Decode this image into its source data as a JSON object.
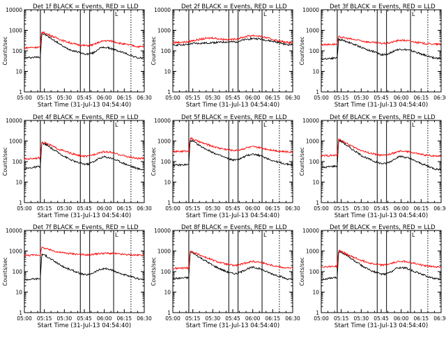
{
  "figure": {
    "colors": {
      "events": "#000000",
      "lld": "#ff0000",
      "axes": "#000000",
      "background": "#ffffff"
    }
  },
  "chart_data": [
    {
      "type": "line",
      "title": "Det 1f BLACK = Events, RED = LLD",
      "xlabel": "Start Time (31-Jul-13 04:54:40)",
      "ylabel": "Counts/sec",
      "yscale": "log",
      "ylim": [
        1,
        10000
      ],
      "xlim": [
        "05:00",
        "06:30"
      ],
      "x_ticks": [
        "05:00",
        "05:15",
        "05:30",
        "05:45",
        "06:00",
        "06:15",
        "06:30"
      ],
      "y_ticks": [
        "1",
        "10",
        "100",
        "1000",
        "10000"
      ],
      "solid_markers": [
        "05:12",
        "05:42",
        "05:49",
        "06:07"
      ],
      "dotted_markers": [
        "05:12",
        "06:20"
      ],
      "markers_label": "L",
      "x": [
        "05:00",
        "05:10",
        "05:12",
        "05:13",
        "05:16",
        "05:20",
        "05:25",
        "05:30",
        "05:35",
        "05:40",
        "05:45",
        "05:48",
        "05:52",
        "05:56",
        "06:00",
        "06:05",
        "06:10",
        "06:15",
        "06:20",
        "06:25",
        "06:30"
      ],
      "series": [
        {
          "name": "Events",
          "color": "#000000",
          "values": [
            45,
            50,
            50,
            700,
            600,
            400,
            250,
            150,
            110,
            90,
            70,
            70,
            80,
            130,
            150,
            130,
            100,
            80,
            60,
            45,
            45
          ]
        },
        {
          "name": "LLD",
          "color": "#ff0000",
          "values": [
            140,
            150,
            150,
            850,
            700,
            550,
            400,
            300,
            240,
            200,
            180,
            180,
            200,
            260,
            310,
            300,
            250,
            210,
            190,
            160,
            160
          ]
        }
      ]
    },
    {
      "type": "line",
      "title": "Det 2f BLACK = Events, RED = LLD",
      "xlabel": "Start Time (31-Jul-13 04:54:40)",
      "ylabel": "Counts/sec",
      "yscale": "log",
      "ylim": [
        1,
        10000
      ],
      "xlim": [
        "05:00",
        "06:30"
      ],
      "x_ticks": [
        "05:00",
        "05:15",
        "05:30",
        "05:45",
        "06:00",
        "06:15",
        "06:30"
      ],
      "y_ticks": [
        "1",
        "10",
        "100",
        "1000",
        "10000"
      ],
      "solid_markers": [
        "05:12",
        "05:42",
        "05:49",
        "06:07"
      ],
      "dotted_markers": [
        "05:12",
        "06:20"
      ],
      "markers_label": "L",
      "x": [
        "05:00",
        "05:10",
        "05:12",
        "05:13",
        "05:16",
        "05:20",
        "05:25",
        "05:30",
        "05:35",
        "05:40",
        "05:45",
        "05:48",
        "05:52",
        "05:56",
        "06:00",
        "06:05",
        "06:10",
        "06:15",
        "06:20",
        "06:25",
        "06:30"
      ],
      "series": [
        {
          "name": "Events",
          "color": "#000000",
          "values": [
            190,
            200,
            200,
            220,
            230,
            230,
            240,
            250,
            260,
            270,
            270,
            280,
            320,
            370,
            400,
            380,
            330,
            290,
            250,
            200,
            200
          ]
        },
        {
          "name": "LLD",
          "color": "#ff0000",
          "values": [
            250,
            270,
            270,
            300,
            320,
            360,
            400,
            430,
            380,
            360,
            360,
            380,
            440,
            520,
            560,
            520,
            440,
            360,
            300,
            260,
            260
          ]
        }
      ]
    },
    {
      "type": "line",
      "title": "Det 3f BLACK = Events, RED = LLD",
      "xlabel": "Start Time (31-Jul-13 04:54:40)",
      "ylabel": "Counts/sec",
      "yscale": "log",
      "ylim": [
        1,
        10000
      ],
      "xlim": [
        "05:00",
        "06:30"
      ],
      "x_ticks": [
        "05:00",
        "05:15",
        "05:30",
        "05:45",
        "06:00",
        "06:15",
        "06:30"
      ],
      "y_ticks": [
        "1",
        "10",
        "100",
        "1000",
        "10000"
      ],
      "solid_markers": [
        "05:12",
        "05:42",
        "05:49",
        "06:07"
      ],
      "dotted_markers": [
        "05:12",
        "06:20"
      ],
      "markers_label": "L",
      "x": [
        "05:00",
        "05:10",
        "05:12",
        "05:13",
        "05:16",
        "05:20",
        "05:25",
        "05:30",
        "05:35",
        "05:40",
        "05:45",
        "05:48",
        "05:52",
        "05:56",
        "06:00",
        "06:05",
        "06:10",
        "06:15",
        "06:20",
        "06:25",
        "06:30"
      ],
      "series": [
        {
          "name": "Events",
          "color": "#000000",
          "values": [
            40,
            45,
            45,
            350,
            330,
            270,
            200,
            150,
            110,
            90,
            65,
            65,
            80,
            110,
            120,
            110,
            90,
            70,
            55,
            45,
            42
          ]
        },
        {
          "name": "LLD",
          "color": "#ff0000",
          "values": [
            200,
            210,
            210,
            480,
            450,
            400,
            350,
            310,
            270,
            250,
            230,
            230,
            250,
            300,
            330,
            310,
            270,
            240,
            220,
            210,
            210
          ]
        }
      ]
    },
    {
      "type": "line",
      "title": "Det 4f BLACK = Events, RED = LLD",
      "xlabel": "Start Time (31-Jul-13 04:54:40)",
      "ylabel": "Counts/sec",
      "yscale": "log",
      "ylim": [
        1,
        10000
      ],
      "xlim": [
        "05:00",
        "06:30"
      ],
      "x_ticks": [
        "05:00",
        "05:15",
        "05:30",
        "05:45",
        "06:00",
        "06:15",
        "06:30"
      ],
      "y_ticks": [
        "1",
        "10",
        "100",
        "1000",
        "10000"
      ],
      "solid_markers": [
        "05:12",
        "05:42",
        "05:49",
        "06:07"
      ],
      "dotted_markers": [
        "05:12",
        "06:20"
      ],
      "markers_label": "L",
      "x": [
        "05:00",
        "05:10",
        "05:12",
        "05:13",
        "05:16",
        "05:20",
        "05:25",
        "05:30",
        "05:35",
        "05:40",
        "05:45",
        "05:48",
        "05:52",
        "05:56",
        "06:00",
        "06:05",
        "06:10",
        "06:15",
        "06:20",
        "06:25",
        "06:30"
      ],
      "series": [
        {
          "name": "Events",
          "color": "#000000",
          "values": [
            45,
            55,
            55,
            800,
            700,
            450,
            280,
            180,
            120,
            90,
            75,
            75,
            100,
            140,
            170,
            150,
            110,
            80,
            60,
            45,
            40
          ]
        },
        {
          "name": "LLD",
          "color": "#ff0000",
          "values": [
            130,
            150,
            150,
            900,
            800,
            600,
            420,
            320,
            250,
            200,
            180,
            180,
            220,
            270,
            300,
            280,
            230,
            190,
            160,
            140,
            140
          ]
        }
      ]
    },
    {
      "type": "line",
      "title": "Det 5f BLACK = Events, RED = LLD",
      "xlabel": "Start Time (31-Jul-13 04:54:40)",
      "ylabel": "Counts/sec",
      "yscale": "log",
      "ylim": [
        1,
        10000
      ],
      "xlim": [
        "05:00",
        "06:30"
      ],
      "x_ticks": [
        "05:00",
        "05:15",
        "05:30",
        "05:45",
        "06:00",
        "06:15",
        "06:30"
      ],
      "y_ticks": [
        "1",
        "10",
        "100",
        "1000",
        "10000"
      ],
      "solid_markers": [
        "05:12",
        "05:42",
        "05:49",
        "06:07"
      ],
      "dotted_markers": [
        "05:12",
        "06:20"
      ],
      "markers_label": "L",
      "x": [
        "05:00",
        "05:10",
        "05:12",
        "05:13",
        "05:16",
        "05:20",
        "05:25",
        "05:30",
        "05:35",
        "05:40",
        "05:45",
        "05:48",
        "05:52",
        "05:56",
        "06:00",
        "06:05",
        "06:10",
        "06:15",
        "06:20",
        "06:25",
        "06:30"
      ],
      "series": [
        {
          "name": "Events",
          "color": "#000000",
          "values": [
            65,
            70,
            70,
            1100,
            900,
            600,
            400,
            280,
            200,
            150,
            120,
            120,
            150,
            200,
            230,
            200,
            150,
            110,
            90,
            75,
            70
          ]
        },
        {
          "name": "LLD",
          "color": "#ff0000",
          "values": [
            300,
            320,
            320,
            1400,
            1150,
            900,
            700,
            550,
            450,
            390,
            350,
            350,
            400,
            480,
            520,
            480,
            410,
            360,
            320,
            300,
            300
          ]
        }
      ]
    },
    {
      "type": "line",
      "title": "Det 6f BLACK = Events, RED = LLD",
      "xlabel": "Start Time (31-Jul-13 04:54:40)",
      "ylabel": "Counts/sec",
      "yscale": "log",
      "ylim": [
        1,
        10000
      ],
      "xlim": [
        "05:00",
        "06:30"
      ],
      "x_ticks": [
        "05:00",
        "05:15",
        "05:30",
        "05:45",
        "06:00",
        "06:15",
        "06:30"
      ],
      "y_ticks": [
        "1",
        "10",
        "100",
        "1000",
        "10000"
      ],
      "solid_markers": [
        "05:12",
        "05:42",
        "05:49",
        "06:07"
      ],
      "dotted_markers": [
        "05:12",
        "06:20"
      ],
      "markers_label": "L",
      "x": [
        "05:00",
        "05:10",
        "05:12",
        "05:13",
        "05:16",
        "05:20",
        "05:25",
        "05:30",
        "05:35",
        "05:40",
        "05:45",
        "05:48",
        "05:52",
        "05:56",
        "06:00",
        "06:05",
        "06:10",
        "06:15",
        "06:20",
        "06:25",
        "06:30"
      ],
      "series": [
        {
          "name": "Events",
          "color": "#000000",
          "values": [
            50,
            60,
            60,
            1100,
            900,
            550,
            330,
            200,
            140,
            100,
            80,
            80,
            100,
            150,
            180,
            150,
            110,
            80,
            60,
            45,
            40
          ]
        },
        {
          "name": "LLD",
          "color": "#ff0000",
          "values": [
            190,
            200,
            200,
            1200,
            1000,
            700,
            480,
            350,
            270,
            230,
            200,
            200,
            230,
            280,
            320,
            300,
            260,
            220,
            200,
            190,
            190
          ]
        }
      ]
    },
    {
      "type": "line",
      "title": "Det 7f BLACK = Events, RED = LLD",
      "xlabel": "Start Time (31-Jul-13 04:54:40)",
      "ylabel": "Counts/sec",
      "yscale": "log",
      "ylim": [
        1,
        10000
      ],
      "xlim": [
        "05:00",
        "06:30"
      ],
      "x_ticks": [
        "05:00",
        "05:15",
        "05:30",
        "05:45",
        "06:00",
        "06:15",
        "06:30"
      ],
      "y_ticks": [
        "1",
        "10",
        "100",
        "1000",
        "10000"
      ],
      "solid_markers": [
        "05:12",
        "05:42",
        "05:49",
        "06:07"
      ],
      "dotted_markers": [
        "05:12",
        "06:20"
      ],
      "markers_label": "L",
      "x": [
        "05:00",
        "05:10",
        "05:12",
        "05:13",
        "05:16",
        "05:20",
        "05:25",
        "05:30",
        "05:35",
        "05:40",
        "05:45",
        "05:48",
        "05:52",
        "05:56",
        "06:00",
        "06:05",
        "06:10",
        "06:15",
        "06:20",
        "06:25",
        "06:30"
      ],
      "series": [
        {
          "name": "Events",
          "color": "#000000",
          "values": [
            40,
            45,
            45,
            700,
            600,
            400,
            250,
            160,
            120,
            90,
            70,
            70,
            90,
            120,
            140,
            120,
            90,
            70,
            55,
            45,
            40
          ]
        },
        {
          "name": "LLD",
          "color": "#ff0000",
          "values": [
            600,
            650,
            650,
            1500,
            1300,
            1100,
            900,
            800,
            750,
            700,
            650,
            650,
            700,
            750,
            780,
            760,
            720,
            680,
            650,
            630,
            650
          ]
        }
      ]
    },
    {
      "type": "line",
      "title": "Det 8f BLACK = Events, RED = LLD",
      "xlabel": "Start Time (31-Jul-13 04:54:40)",
      "ylabel": "Counts/sec",
      "yscale": "log",
      "ylim": [
        1,
        10000
      ],
      "xlim": [
        "05:00",
        "06:30"
      ],
      "x_ticks": [
        "05:00",
        "05:15",
        "05:30",
        "05:45",
        "06:00",
        "06:15",
        "06:30"
      ],
      "y_ticks": [
        "1",
        "10",
        "100",
        "1000",
        "10000"
      ],
      "solid_markers": [
        "05:12",
        "05:42",
        "05:49",
        "06:07"
      ],
      "dotted_markers": [
        "05:12",
        "06:20"
      ],
      "markers_label": "L",
      "x": [
        "05:00",
        "05:10",
        "05:12",
        "05:13",
        "05:16",
        "05:20",
        "05:25",
        "05:30",
        "05:35",
        "05:40",
        "05:45",
        "05:48",
        "05:52",
        "05:56",
        "06:00",
        "06:05",
        "06:10",
        "06:15",
        "06:20",
        "06:25",
        "06:30"
      ],
      "series": [
        {
          "name": "Events",
          "color": "#000000",
          "values": [
            45,
            50,
            50,
            900,
            750,
            500,
            320,
            200,
            140,
            100,
            80,
            80,
            100,
            140,
            160,
            140,
            100,
            75,
            60,
            45,
            40
          ]
        },
        {
          "name": "LLD",
          "color": "#ff0000",
          "values": [
            140,
            150,
            150,
            1000,
            850,
            650,
            480,
            360,
            280,
            230,
            200,
            200,
            230,
            280,
            310,
            290,
            240,
            200,
            170,
            150,
            150
          ]
        }
      ]
    },
    {
      "type": "line",
      "title": "Det 9f BLACK = Events, RED = LLD",
      "xlabel": "Start Time (31-Jul-13 04:54:40)",
      "ylabel": "Counts/sec",
      "yscale": "log",
      "ylim": [
        1,
        10000
      ],
      "xlim": [
        "05:00",
        "06:30"
      ],
      "x_ticks": [
        "05:00",
        "05:15",
        "05:30",
        "05:45",
        "06:00",
        "06:15",
        "06:30"
      ],
      "y_ticks": [
        "1",
        "10",
        "100",
        "1000",
        "10000"
      ],
      "solid_markers": [
        "05:12",
        "05:42",
        "05:49",
        "06:07"
      ],
      "dotted_markers": [
        "05:12",
        "06:20"
      ],
      "markers_label": "L",
      "x": [
        "05:00",
        "05:10",
        "05:12",
        "05:13",
        "05:16",
        "05:20",
        "05:25",
        "05:30",
        "05:35",
        "05:40",
        "05:45",
        "05:48",
        "05:52",
        "05:56",
        "06:00",
        "06:05",
        "06:10",
        "06:15",
        "06:20",
        "06:25",
        "06:30"
      ],
      "series": [
        {
          "name": "Events",
          "color": "#000000",
          "values": [
            40,
            50,
            50,
            1000,
            800,
            550,
            330,
            200,
            130,
            95,
            75,
            75,
            95,
            140,
            160,
            140,
            100,
            75,
            58,
            45,
            40
          ]
        },
        {
          "name": "LLD",
          "color": "#ff0000",
          "values": [
            170,
            180,
            180,
            1100,
            900,
            650,
            470,
            350,
            280,
            230,
            210,
            210,
            240,
            290,
            320,
            300,
            250,
            210,
            185,
            170,
            170
          ]
        }
      ]
    }
  ]
}
